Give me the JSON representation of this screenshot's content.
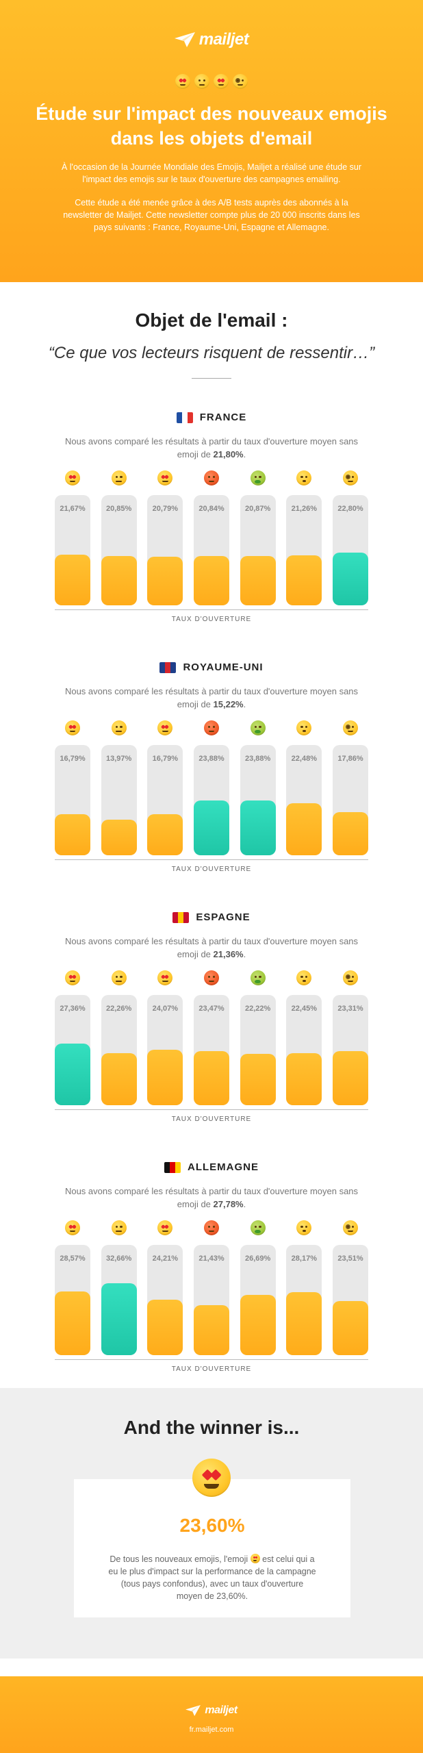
{
  "header": {
    "logo": "mailjet",
    "emojis": [
      "star-struck",
      "raised-eyebrow",
      "exploding-head",
      "monocle"
    ],
    "title": "Étude sur l'impact des nouveaux emojis dans les objets d'email",
    "intro_1": "À l'occasion de la Journée Mondiale des Emojis, Mailjet a réalisé une étude sur l'impact des emojis sur le taux d'ouverture des campagnes emailing.",
    "intro_2": "Cette étude a été menée grâce à des A/B tests auprès des abonnés à la newsletter de Mailjet. Cette newsletter compte plus de 20 000 inscrits dans les pays suivants : France, Royaume-Uni, Espagne et Allemagne."
  },
  "subject": {
    "heading": "Objet de l'email :",
    "quote": "“Ce que vos lecteurs risquent de ressentir…”"
  },
  "chart_data": [
    {
      "type": "bar",
      "title": "FRANCE",
      "description_prefix": "Nous avons comparé les résultats à partir du taux d'ouverture moyen sans emoji de ",
      "baseline": "21,80%",
      "categories": [
        "star-struck",
        "raised-eyebrow",
        "exploding-head",
        "angry",
        "vomiting",
        "hush",
        "monocle"
      ],
      "values": [
        21.67,
        20.85,
        20.79,
        20.84,
        20.87,
        21.26,
        22.8
      ],
      "labels": [
        "21,67%",
        "20,85%",
        "20,79%",
        "20,84%",
        "20,87%",
        "21,26%",
        "22,80%"
      ],
      "winner_index": 6,
      "xlabel": "TAUX D'OUVERTURE",
      "ylim": [
        0,
        100
      ]
    },
    {
      "type": "bar",
      "title": "ROYAUME-UNI",
      "description_prefix": "Nous avons comparé les résultats à partir du taux d'ouverture moyen sans emoji de ",
      "baseline": "15,22%",
      "categories": [
        "star-struck",
        "raised-eyebrow",
        "exploding-head",
        "angry",
        "vomiting",
        "hush",
        "monocle"
      ],
      "values": [
        16.79,
        13.97,
        16.79,
        23.88,
        23.88,
        22.48,
        17.86
      ],
      "labels": [
        "16,79%",
        "13,97%",
        "16,79%",
        "23,88%",
        "23,88%",
        "22,48%",
        "17,86%"
      ],
      "winner_index": [
        3,
        4
      ],
      "xlabel": "TAUX D'OUVERTURE",
      "ylim": [
        0,
        100
      ]
    },
    {
      "type": "bar",
      "title": "ESPAGNE",
      "description_prefix": "Nous avons comparé les résultats à partir du taux d'ouverture moyen sans emoji de ",
      "baseline": "21,36%",
      "categories": [
        "star-struck",
        "raised-eyebrow",
        "exploding-head",
        "angry",
        "vomiting",
        "hush",
        "monocle"
      ],
      "values": [
        27.36,
        22.26,
        24.07,
        23.47,
        22.22,
        22.45,
        23.31
      ],
      "labels": [
        "27,36%",
        "22,26%",
        "24,07%",
        "23,47%",
        "22,22%",
        "22,45%",
        "23,31%"
      ],
      "winner_index": 0,
      "xlabel": "TAUX D'OUVERTURE",
      "ylim": [
        0,
        100
      ]
    },
    {
      "type": "bar",
      "title": "ALLEMAGNE",
      "description_prefix": "Nous avons comparé les résultats à partir du taux d'ouverture moyen sans emoji de ",
      "baseline": "27,78%",
      "categories": [
        "star-struck",
        "raised-eyebrow",
        "exploding-head",
        "angry",
        "vomiting",
        "hush",
        "monocle"
      ],
      "values": [
        28.57,
        32.66,
        24.21,
        21.43,
        26.69,
        28.17,
        23.51
      ],
      "labels": [
        "28,57%",
        "32,66%",
        "24,21%",
        "21,43%",
        "26,69%",
        "28,17%",
        "23,51%"
      ],
      "winner_index": 1,
      "xlabel": "TAUX D'OUVERTURE",
      "ylim": [
        0,
        100
      ]
    }
  ],
  "flags": {
    "FRANCE": [
      "#1f4fa3",
      "#ffffff",
      "#e2322c"
    ],
    "ROYAUME-UNI": [
      "#1f3f8a",
      "#d5262d",
      "#1f3f8a"
    ],
    "ESPAGNE": [
      "#c8102e",
      "#ffc400",
      "#c8102e"
    ],
    "ALLEMAGNE": [
      "#111111",
      "#dd0000",
      "#ffce00"
    ]
  },
  "winner": {
    "heading": "And the winner is...",
    "emoji": "star-struck",
    "value": "23,60%",
    "text_before": "De tous les nouveaux emojis, l'emoji",
    "text_after": "est celui qui a eu le plus d'impact sur la performance de la campagne (tous pays confondus), avec un taux d'ouverture moyen de 23,60%."
  },
  "footer": {
    "logo": "mailjet",
    "link": "fr.mailjet.com"
  },
  "colors": {
    "accent": "#ffa41c",
    "winner_bar": "#26d0b0",
    "track": "#e8e8e8"
  }
}
